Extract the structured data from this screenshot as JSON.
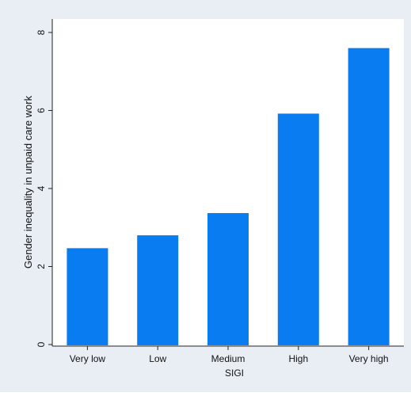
{
  "colors": {
    "outer_background": "#e9eef4",
    "plot_background": "#ffffff",
    "bar": "#0a7cf2",
    "axis": "#222222"
  },
  "chart_data": {
    "type": "bar",
    "categories": [
      "Very low",
      "Low",
      "Medium",
      "High",
      "Very high"
    ],
    "values": [
      2.47,
      2.8,
      3.37,
      5.92,
      7.6
    ],
    "title": "",
    "xlabel": "SIGI",
    "ylabel": "Gender inequality in unpaid care work",
    "ylim": [
      0,
      8
    ],
    "yticks": [
      0,
      2,
      4,
      6,
      8
    ],
    "grid": false,
    "legend": "none"
  }
}
